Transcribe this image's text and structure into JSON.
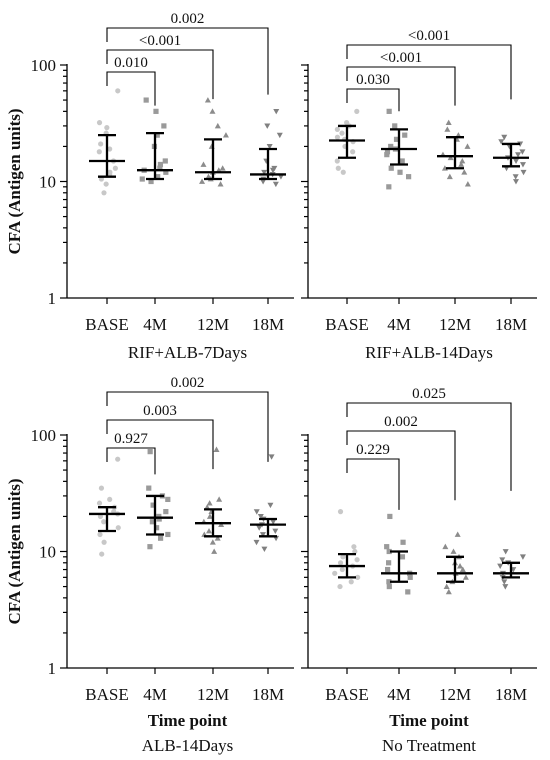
{
  "colors": {
    "BASE": "#c8c8c8",
    "4M": "#9a9a9a",
    "12M": "#8c8c8c",
    "18M": "#808080",
    "stat": "#000000"
  },
  "markers": {
    "BASE": "circle",
    "4M": "square",
    "12M": "triangle-up",
    "18M": "triangle-down"
  },
  "chart_data": [
    {
      "type": "scatter",
      "subtitle": "RIF+ALB-7Days",
      "ylabel": "CFA (Antigen units)",
      "xlabel": "",
      "yscale": "log",
      "ylim": [
        1,
        100
      ],
      "yticks": [
        "1",
        "10",
        "100"
      ],
      "categories": [
        "BASE",
        "4M",
        "12M",
        "18M"
      ],
      "summary": [
        {
          "median": 15,
          "q1": 11,
          "q3": 25
        },
        {
          "median": 12.5,
          "q1": 10.5,
          "q3": 26
        },
        {
          "median": 12,
          "q1": 10.5,
          "q3": 23
        },
        {
          "median": 11.5,
          "q1": 10.5,
          "q3": 19
        }
      ],
      "points": [
        [
          8,
          9.5,
          10.5,
          11.5,
          12,
          13,
          15,
          18,
          19,
          21,
          26,
          29,
          32,
          60
        ],
        [
          10,
          10.5,
          11,
          12,
          12.5,
          13,
          14,
          15,
          20,
          25,
          30,
          40,
          50
        ],
        [
          9.5,
          10,
          10.5,
          11,
          12,
          12.5,
          13,
          14,
          20,
          25,
          30,
          40,
          50
        ],
        [
          9.5,
          10,
          10.5,
          11,
          11.5,
          12,
          12.5,
          13,
          15,
          20,
          25,
          30,
          40
        ]
      ],
      "comparisons": [
        {
          "from": "BASE",
          "to": "4M",
          "label": "0.010"
        },
        {
          "from": "BASE",
          "to": "12M",
          "label": "<0.001"
        },
        {
          "from": "BASE",
          "to": "18M",
          "label": "0.002"
        }
      ]
    },
    {
      "type": "scatter",
      "subtitle": "RIF+ALB-14Days",
      "ylabel": "",
      "xlabel": "",
      "yscale": "log",
      "ylim": [
        1,
        100
      ],
      "categories": [
        "BASE",
        "4M",
        "12M",
        "18M"
      ],
      "summary": [
        {
          "median": 22.5,
          "q1": 16,
          "q3": 30
        },
        {
          "median": 19,
          "q1": 14,
          "q3": 28
        },
        {
          "median": 16.5,
          "q1": 13,
          "q3": 24
        },
        {
          "median": 16,
          "q1": 13.5,
          "q3": 21
        }
      ],
      "points": [
        [
          12,
          13,
          15,
          18,
          20,
          22,
          23,
          24,
          26,
          28,
          30,
          32,
          40
        ],
        [
          9,
          11,
          12,
          13,
          15,
          17,
          18,
          19,
          20,
          23,
          25,
          30,
          40
        ],
        [
          9.5,
          11,
          12,
          13,
          14,
          15,
          16,
          17,
          20,
          23,
          25,
          28,
          32
        ],
        [
          10,
          11,
          12,
          13,
          14,
          15,
          16,
          17,
          18,
          20,
          21,
          22,
          24
        ]
      ],
      "comparisons": [
        {
          "from": "BASE",
          "to": "4M",
          "label": "0.030"
        },
        {
          "from": "BASE",
          "to": "12M",
          "label": "<0.001"
        },
        {
          "from": "BASE",
          "to": "18M",
          "label": "<0.001"
        }
      ]
    },
    {
      "type": "scatter",
      "subtitle": "ALB-14Days",
      "ylabel": "CFA (Antigen units)",
      "xlabel": "Time point",
      "yscale": "log",
      "ylim": [
        1,
        100
      ],
      "yticks": [
        "1",
        "10",
        "100"
      ],
      "categories": [
        "BASE",
        "4M",
        "12M",
        "18M"
      ],
      "summary": [
        {
          "median": 21,
          "q1": 15,
          "q3": 24
        },
        {
          "median": 19.5,
          "q1": 14,
          "q3": 30
        },
        {
          "median": 17.5,
          "q1": 13.5,
          "q3": 23
        },
        {
          "median": 17,
          "q1": 13.5,
          "q3": 19
        }
      ],
      "points": [
        [
          9.5,
          12,
          14,
          16,
          18,
          20,
          21,
          22,
          24,
          26,
          28,
          35,
          62
        ],
        [
          11,
          13,
          14,
          16,
          18,
          19,
          20,
          22,
          25,
          28,
          30,
          35,
          72
        ],
        [
          10,
          12,
          13,
          14,
          15,
          17,
          18,
          20,
          22,
          24,
          26,
          28,
          75
        ],
        [
          10.5,
          12,
          13,
          14,
          15,
          16,
          17,
          18,
          19,
          20,
          22,
          25,
          65
        ]
      ],
      "comparisons": [
        {
          "from": "BASE",
          "to": "4M",
          "label": "0.927"
        },
        {
          "from": "BASE",
          "to": "12M",
          "label": "0.003"
        },
        {
          "from": "BASE",
          "to": "18M",
          "label": "0.002"
        }
      ]
    },
    {
      "type": "scatter",
      "subtitle": "No Treatment",
      "ylabel": "",
      "xlabel": "Time point",
      "yscale": "log",
      "ylim": [
        1,
        100
      ],
      "categories": [
        "BASE",
        "4M",
        "12M",
        "18M"
      ],
      "summary": [
        {
          "median": 7.5,
          "q1": 6,
          "q3": 9.5
        },
        {
          "median": 6.5,
          "q1": 5.5,
          "q3": 10
        },
        {
          "median": 6.5,
          "q1": 5.5,
          "q3": 9
        },
        {
          "median": 6.5,
          "q1": 6,
          "q3": 8
        }
      ],
      "points": [
        [
          5,
          5.5,
          6,
          6.5,
          7,
          7.5,
          8,
          8.5,
          9,
          10,
          11,
          22
        ],
        [
          4.5,
          5,
          5.5,
          6,
          6.5,
          7,
          8,
          9,
          10,
          11,
          12,
          20
        ],
        [
          4.5,
          5,
          5.5,
          6,
          6.5,
          7,
          7.5,
          8,
          9,
          10,
          11,
          14
        ],
        [
          5,
          5.5,
          6,
          6.5,
          7,
          7.5,
          8,
          8.5,
          9,
          10
        ]
      ],
      "comparisons": [
        {
          "from": "BASE",
          "to": "4M",
          "label": "0.229"
        },
        {
          "from": "BASE",
          "to": "12M",
          "label": "0.002"
        },
        {
          "from": "BASE",
          "to": "18M",
          "label": "0.025"
        }
      ]
    }
  ]
}
